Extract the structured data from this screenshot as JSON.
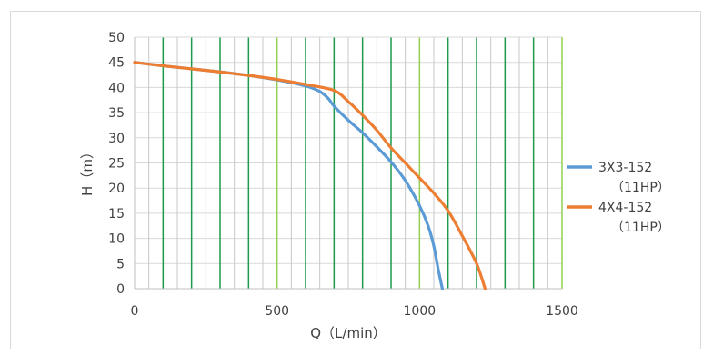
{
  "chart_data": {
    "type": "line",
    "title": "",
    "xlabel": "Q（L/min）",
    "ylabel": "H（m）",
    "xlim": [
      0,
      1500
    ],
    "ylim": [
      0,
      50
    ],
    "x_ticks": [
      "0",
      "500",
      "1000",
      "1500"
    ],
    "y_ticks": [
      "0",
      "5",
      "10",
      "15",
      "20",
      "25",
      "30",
      "35",
      "40",
      "45",
      "50"
    ],
    "grid": {
      "vertical": true,
      "horizontal": true,
      "vertical_step": 100,
      "horizontal_step": 5
    },
    "legend": "right",
    "series": [
      {
        "name_line1": "3X3-152",
        "name_line2": "（11HP）",
        "color": "#5b9bd5",
        "points": [
          [
            0,
            45
          ],
          [
            100,
            44.3
          ],
          [
            200,
            43.7
          ],
          [
            300,
            43.1
          ],
          [
            400,
            42.4
          ],
          [
            500,
            41.5
          ],
          [
            600,
            40.3
          ],
          [
            650,
            39.2
          ],
          [
            680,
            37.8
          ],
          [
            700,
            36.3
          ],
          [
            750,
            33.5
          ],
          [
            800,
            31
          ],
          [
            850,
            28.2
          ],
          [
            900,
            25.2
          ],
          [
            950,
            21.5
          ],
          [
            1000,
            16.5
          ],
          [
            1030,
            12.5
          ],
          [
            1050,
            8.5
          ],
          [
            1065,
            4
          ],
          [
            1080,
            0
          ]
        ]
      },
      {
        "name_line1": "4X4-152",
        "name_line2": "（11HP）",
        "color": "#ed7d31",
        "points": [
          [
            0,
            45
          ],
          [
            100,
            44.3
          ],
          [
            200,
            43.7
          ],
          [
            300,
            43.1
          ],
          [
            400,
            42.4
          ],
          [
            500,
            41.6
          ],
          [
            600,
            40.6
          ],
          [
            700,
            39.4
          ],
          [
            750,
            37.2
          ],
          [
            800,
            34.5
          ],
          [
            850,
            31.5
          ],
          [
            900,
            28
          ],
          [
            950,
            25
          ],
          [
            1000,
            22
          ],
          [
            1050,
            19
          ],
          [
            1100,
            15.5
          ],
          [
            1150,
            10.5
          ],
          [
            1200,
            5
          ],
          [
            1230,
            0
          ]
        ]
      }
    ]
  }
}
